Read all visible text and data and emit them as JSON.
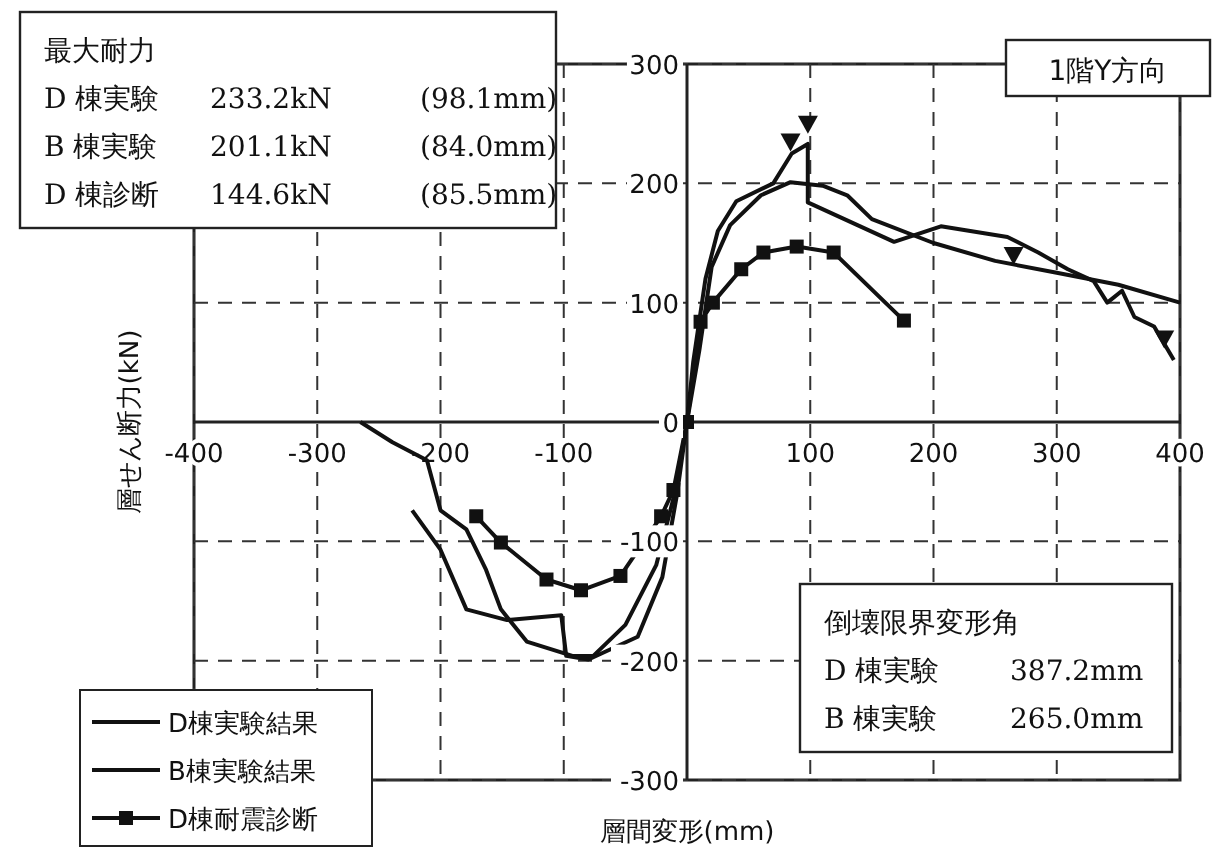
{
  "chart_data": {
    "type": "line",
    "title": "1階Y方向",
    "xlabel": "層間変形(mm)",
    "ylabel": "層せん断力(kN)",
    "xlim": [
      -400,
      400
    ],
    "ylim": [
      -300,
      300
    ],
    "xticks": [
      -400,
      -300,
      -200,
      -100,
      {
        "value": 0,
        "label": null
      },
      100,
      200,
      300,
      400
    ],
    "yticks": [
      -300,
      -200,
      -100,
      0,
      100,
      200,
      300
    ],
    "grid": true,
    "legend": "bottom left",
    "line_style": "solid",
    "annotations": [
      "最大耐力\nD 棟実験\t233.2kN\t(98.1mm)\nB 棟実験\t201.1kN\t(84.0mm)\nD 棟診断\t144.6kN\t(85.5mm)",
      "倒壊限界変形角\nD 棟実験\t387.2mm\nB 棟実験\t265.0mm"
    ],
    "series": [
      {
        "name": "D棟実験結果",
        "color": "#111111",
        "marker": "none",
        "x": [
          -265,
          -239,
          -211,
          -200,
          -179,
          -163,
          -151,
          -130,
          -93,
          -76,
          -50,
          -25,
          -10,
          0,
          5,
          15,
          25,
          40,
          70,
          85,
          98,
          98,
          168,
          206,
          260,
          285,
          309,
          330,
          341,
          353,
          363,
          379,
          395
        ],
        "values": [
          0,
          -17,
          -32,
          -74,
          -90,
          -124,
          -157,
          -184,
          -196,
          -196,
          -170,
          -120,
          -60,
          0,
          50,
          120,
          160,
          185,
          200,
          225,
          233,
          184,
          151,
          164,
          155,
          142,
          128,
          118,
          100,
          110,
          88,
          80,
          52
        ]
      },
      {
        "name": "B棟実験結果",
        "color": "#111111",
        "marker": "none",
        "x": [
          -223,
          -200,
          -179,
          -146,
          -102,
          -98,
          -80,
          -40,
          -20,
          -8,
          0,
          10,
          20,
          35,
          60,
          84,
          110,
          130,
          150,
          200,
          250,
          300,
          350,
          400
        ],
        "values": [
          -74,
          -107,
          -157,
          -166,
          -162,
          -196,
          -199,
          -180,
          -130,
          -60,
          0,
          60,
          130,
          165,
          190,
          201,
          198,
          190,
          170,
          150,
          135,
          125,
          115,
          100
        ]
      },
      {
        "name": "D棟耐震診断",
        "color": "#111111",
        "marker": "square",
        "x": [
          -171,
          -151,
          -114,
          -86,
          -54,
          -21,
          -11,
          0,
          11,
          21,
          44,
          62,
          89,
          119,
          176
        ],
        "values": [
          -79,
          -101,
          -132,
          -141,
          -129,
          -79,
          -57,
          0,
          84,
          100,
          128,
          142,
          147,
          142,
          85
        ]
      },
      {
        "type": "scatter",
        "color": "#111111",
        "marker": "triangle",
        "x": [
          98.1,
          84.0,
          265.0,
          387.2
        ],
        "values": [
          250,
          235,
          140,
          70
        ]
      }
    ]
  }
}
